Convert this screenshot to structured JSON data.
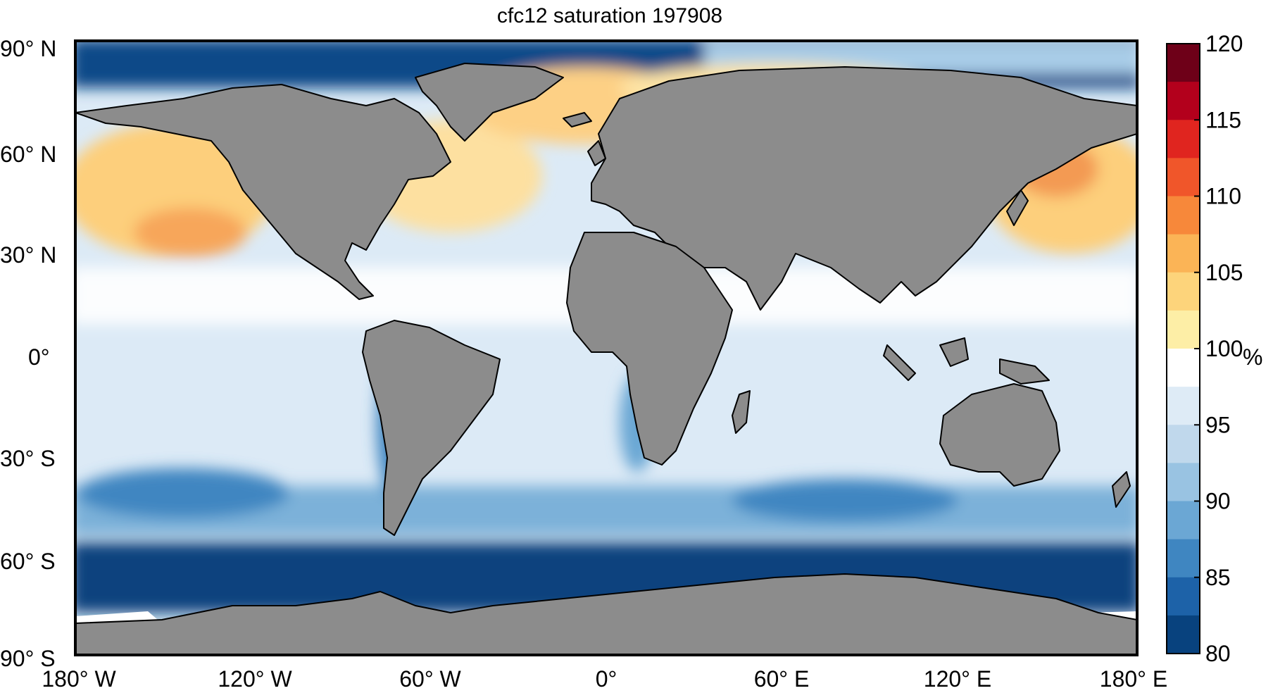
{
  "title": "cfc12 saturation 197908",
  "colorbar": {
    "unit": "%",
    "min": 80,
    "max": 120,
    "ticks": [
      "120",
      "115",
      "110",
      "105",
      "100",
      "95",
      "90",
      "85",
      "80"
    ],
    "colors": [
      "#6e0018",
      "#b3001c",
      "#e0251f",
      "#f0562a",
      "#f7883a",
      "#fbb456",
      "#fdd47b",
      "#fdeea6",
      "#ffffff",
      "#deebf6",
      "#c0d8ec",
      "#99c3e2",
      "#6ba7d4",
      "#3f86c1",
      "#1d62a8",
      "#08427e"
    ]
  },
  "axes": {
    "lat_labels": [
      "90° N",
      "60° N",
      "30° N",
      "0°",
      "30° S",
      "60° S",
      "90° S"
    ],
    "lon_labels": [
      "180° W",
      "120° W",
      "60° W",
      "0°",
      "60° E",
      "120° E",
      "180° E"
    ]
  },
  "map_colors": {
    "land": "#8c8c8c",
    "coast": "#000000",
    "warm": "#fbb456",
    "warm_light": "#fde3a0",
    "cold_deep": "#08427e",
    "cold_mid": "#6ba7d4",
    "cold_light": "#dceaf6",
    "neutral": "#ffffff"
  }
}
